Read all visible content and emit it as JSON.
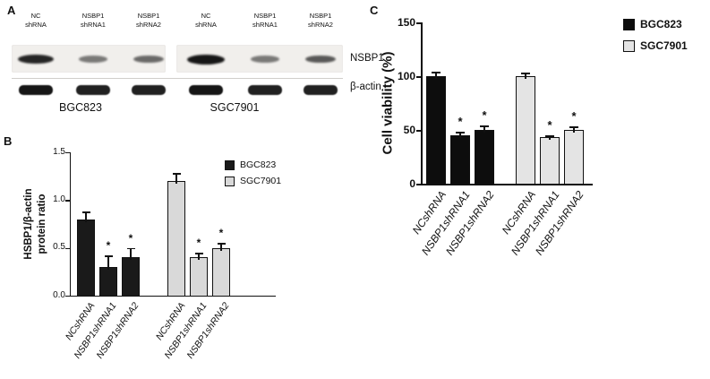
{
  "panelA": {
    "label": "A",
    "lane_labels": [
      "NC\nshRNA",
      "NSBP1\nshRNA1",
      "NSBP1\nshRNA2",
      "NC\nshRNA",
      "NSBP1\nshRNA1",
      "NSBP1\nshRNA2"
    ],
    "row_labels": [
      "NSBP1",
      "β-actin"
    ],
    "group_labels": [
      "BGC823",
      "SGC7901"
    ],
    "nsbp1_band_intensities": [
      0.9,
      0.35,
      0.45,
      1.0,
      0.35,
      0.55
    ],
    "actin_band_intensities": [
      1,
      0.95,
      0.95,
      1,
      0.95,
      0.95
    ]
  },
  "chart_data": [
    {
      "id": "panelB",
      "panel_label": "B",
      "type": "bar",
      "title": "",
      "ylabel": "HSBP1/β-actin\nprotein ratio",
      "ylim": [
        0,
        1.5
      ],
      "ytick_values": [
        0,
        0.5,
        1.0,
        1.5
      ],
      "ytick_labels": [
        "0.0",
        "0.5",
        "1.0",
        "1.5"
      ],
      "categories": [
        "NCshRNA",
        "NSBP1shRNA1",
        "NSBP1shRNA2"
      ],
      "series": [
        {
          "name": "BGC823",
          "color": "#1a1a1a",
          "values": [
            0.8,
            0.3,
            0.4
          ],
          "errors": [
            0.08,
            0.12,
            0.1
          ],
          "significant": [
            false,
            true,
            true
          ]
        },
        {
          "name": "SGC7901",
          "color": "#d9d9d9",
          "values": [
            1.2,
            0.4,
            0.5
          ],
          "errors": [
            0.08,
            0.05,
            0.05
          ],
          "significant": [
            false,
            true,
            true
          ]
        }
      ],
      "significance_marker": "*",
      "legend_position": "top-right",
      "grid": false
    },
    {
      "id": "panelC",
      "panel_label": "C",
      "type": "bar",
      "title": "",
      "ylabel": "Cell viability (%)",
      "ylim": [
        0,
        150
      ],
      "ytick_values": [
        0,
        50,
        100,
        150
      ],
      "ytick_labels": [
        "0",
        "50",
        "100",
        "150"
      ],
      "categories": [
        "NCshRNA",
        "NSBP1shRNA1",
        "NSBP1shRNA2"
      ],
      "series": [
        {
          "name": "BGC823",
          "color": "#0d0d0d",
          "values": [
            100,
            45,
            50
          ],
          "errors": [
            4,
            3,
            4
          ],
          "significant": [
            false,
            true,
            true
          ]
        },
        {
          "name": "SGC7901",
          "color": "#e4e4e4",
          "values": [
            100,
            43,
            50
          ],
          "errors": [
            3,
            2,
            3
          ],
          "significant": [
            false,
            true,
            true
          ]
        }
      ],
      "significance_marker": "*",
      "legend_position": "top-right",
      "grid": false
    }
  ]
}
